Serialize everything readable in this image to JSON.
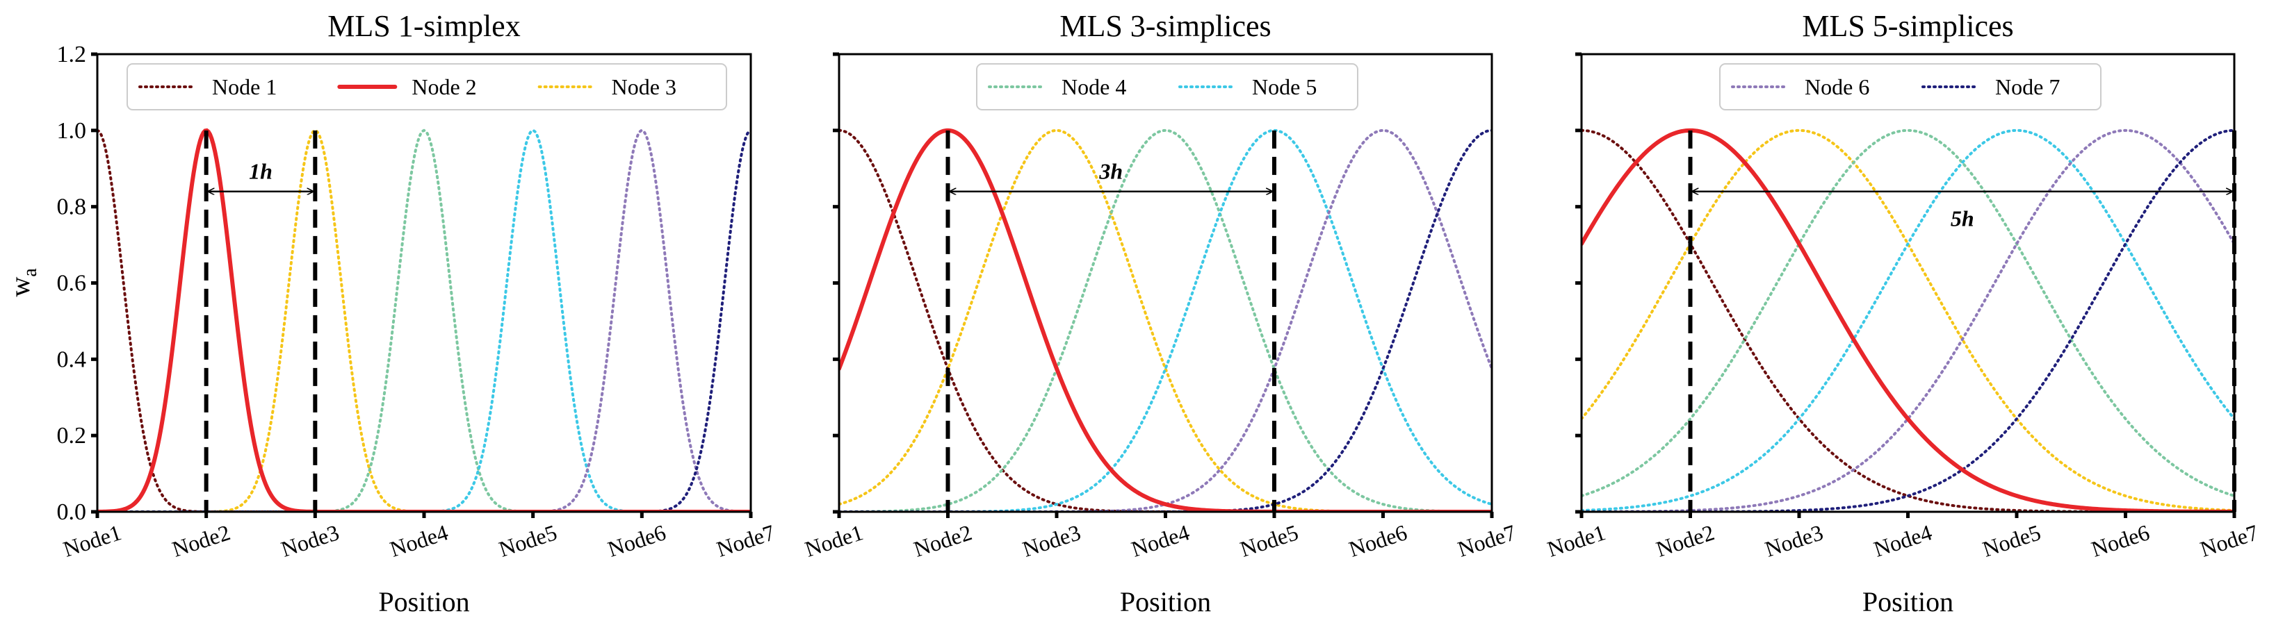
{
  "chart_data": [
    {
      "type": "line",
      "title": "MLS  1-simplex",
      "xlabel": "Position",
      "ylabel": "w",
      "ylabel_sub": "a",
      "categories": [
        "Node1",
        "Node2",
        "Node3",
        "Node4",
        "Node5",
        "Node6",
        "Node7"
      ],
      "xlim": [
        1,
        7
      ],
      "ylim": [
        0,
        1.2
      ],
      "yticks": [
        "0.0",
        "0.2",
        "0.4",
        "0.6",
        "0.8",
        "1.0",
        "1.2"
      ],
      "support_radius_h": 1,
      "series": [
        {
          "name": "Node 1",
          "center": 1,
          "color": "#6b0f0f",
          "dash": "dotted"
        },
        {
          "name": "Node 2",
          "center": 2,
          "color": "#e8262a",
          "dash": "solid"
        },
        {
          "name": "Node 3",
          "center": 3,
          "color": "#f5c518",
          "dash": "dotted"
        },
        {
          "name": "Node 4",
          "center": 4,
          "color": "#7cc7a0",
          "dash": "dotted"
        },
        {
          "name": "Node 5",
          "center": 5,
          "color": "#3cc8e6",
          "dash": "dotted"
        },
        {
          "name": "Node 6",
          "center": 6,
          "color": "#8e79b8",
          "dash": "dotted"
        },
        {
          "name": "Node 7",
          "center": 7,
          "color": "#1f1f7a",
          "dash": "dotted"
        }
      ],
      "legend": [
        "Node 1",
        "Node 2",
        "Node 3"
      ],
      "vlines": [
        2,
        3
      ],
      "annotation": {
        "text": "1h",
        "from": 2,
        "to": 3,
        "y": 0.84
      }
    },
    {
      "type": "line",
      "title": "MLS  3-simplices",
      "xlabel": "Position",
      "categories": [
        "Node1",
        "Node2",
        "Node3",
        "Node4",
        "Node5",
        "Node6",
        "Node7"
      ],
      "xlim": [
        1,
        7
      ],
      "ylim": [
        0,
        1.2
      ],
      "support_radius_h": 3,
      "series": [
        {
          "name": "Node 1",
          "center": 1,
          "color": "#6b0f0f",
          "dash": "dotted"
        },
        {
          "name": "Node 2",
          "center": 2,
          "color": "#e8262a",
          "dash": "solid"
        },
        {
          "name": "Node 3",
          "center": 3,
          "color": "#f5c518",
          "dash": "dotted"
        },
        {
          "name": "Node 4",
          "center": 4,
          "color": "#7cc7a0",
          "dash": "dotted"
        },
        {
          "name": "Node 5",
          "center": 5,
          "color": "#3cc8e6",
          "dash": "dotted"
        },
        {
          "name": "Node 6",
          "center": 6,
          "color": "#8e79b8",
          "dash": "dotted"
        },
        {
          "name": "Node 7",
          "center": 7,
          "color": "#1f1f7a",
          "dash": "dotted"
        }
      ],
      "legend": [
        "Node 4",
        "Node 5"
      ],
      "vlines": [
        2,
        5
      ],
      "annotation": {
        "text": "3h",
        "from": 2,
        "to": 5,
        "y": 0.84
      }
    },
    {
      "type": "line",
      "title": "MLS  5-simplices",
      "xlabel": "Position",
      "categories": [
        "Node1",
        "Node2",
        "Node3",
        "Node4",
        "Node5",
        "Node6",
        "Node7"
      ],
      "xlim": [
        1,
        7
      ],
      "ylim": [
        0,
        1.2
      ],
      "support_radius_h": 5,
      "series": [
        {
          "name": "Node 1",
          "center": 1,
          "color": "#6b0f0f",
          "dash": "dotted"
        },
        {
          "name": "Node 2",
          "center": 2,
          "color": "#e8262a",
          "dash": "solid"
        },
        {
          "name": "Node 3",
          "center": 3,
          "color": "#f5c518",
          "dash": "dotted"
        },
        {
          "name": "Node 4",
          "center": 4,
          "color": "#7cc7a0",
          "dash": "dotted"
        },
        {
          "name": "Node 5",
          "center": 5,
          "color": "#3cc8e6",
          "dash": "dotted"
        },
        {
          "name": "Node 6",
          "center": 6,
          "color": "#8e79b8",
          "dash": "dotted"
        },
        {
          "name": "Node 7",
          "center": 7,
          "color": "#1f1f7a",
          "dash": "dotted"
        }
      ],
      "legend": [
        "Node 6",
        "Node 7"
      ],
      "vlines": [
        2,
        7
      ],
      "annotation": {
        "text": "5h",
        "from": 2,
        "to": 7,
        "y": 0.84
      }
    }
  ]
}
